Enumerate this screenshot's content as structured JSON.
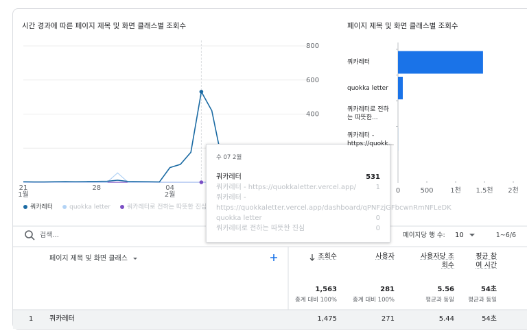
{
  "left_chart": {
    "type": "line",
    "title": "시간 경과에 따른 페이지 제목 및 화면 클래스별 조회수",
    "categories": [
      "21",
      null,
      null,
      null,
      null,
      null,
      null,
      "28",
      null,
      null,
      null,
      null,
      null,
      null,
      "04",
      null,
      null,
      null,
      null,
      null,
      null,
      null,
      null,
      null,
      null,
      null,
      null,
      null
    ],
    "month_labels": [
      "1월",
      null,
      null,
      null,
      null,
      null,
      null,
      null,
      null,
      null,
      null,
      null,
      null,
      null,
      "2월",
      null,
      null,
      null,
      null,
      null,
      null,
      null,
      null,
      null,
      null,
      null,
      null,
      null
    ],
    "ylim": [
      0,
      800
    ],
    "yticks": [
      0,
      200,
      400,
      600,
      800
    ],
    "y_axis_side": "right",
    "grid": true,
    "series": [
      {
        "name": "쿼카레터",
        "color": "#1a6aa3",
        "values": [
          3,
          2,
          2,
          3,
          4,
          3,
          4,
          5,
          6,
          12,
          5,
          4,
          3,
          2,
          86,
          105,
          176,
          531,
          420,
          120,
          40,
          20,
          15,
          12,
          10,
          8,
          6,
          5
        ]
      },
      {
        "name": "quokka letter",
        "color": "#b3d3f5",
        "values": [
          0,
          0,
          0,
          0,
          0,
          0,
          0,
          0,
          0,
          55,
          0,
          0,
          0,
          0,
          0,
          0,
          0,
          0,
          0,
          0,
          0,
          0,
          0,
          0,
          0,
          0,
          0,
          0
        ]
      },
      {
        "name": "쿼카레터로 전하는 따뜻한 진심",
        "color": "#7b4fc4",
        "values": [
          0,
          0,
          0,
          0,
          0,
          0,
          0,
          0,
          0,
          0,
          0,
          0,
          0,
          0,
          0,
          0,
          0,
          0,
          0,
          0,
          0,
          0,
          0,
          0,
          0,
          0,
          0,
          0
        ]
      }
    ]
  },
  "right_chart": {
    "type": "hbar",
    "title": "페이지 제목 및 화면 클래스별 조회수",
    "color": "#1a73e8",
    "categories": [
      "쿼카레터",
      "quokka letter",
      "쿼카레터로 전하는 따뜻한...",
      "쿼카레터 - https://quokk..."
    ],
    "values": [
      1475,
      83,
      0,
      1
    ],
    "xlim": [
      0,
      2000
    ],
    "xticks": [
      0,
      500,
      {
        "value": 1000,
        "label": "1천"
      },
      {
        "value": 1500,
        "label": "1.5천"
      },
      {
        "value": 2000,
        "label": "2천"
      }
    ]
  },
  "tooltip": {
    "title": "수 07 2월",
    "rows": [
      {
        "label": "쿼카레터",
        "value": 531
      },
      {
        "label": "쿼카레터 - https://quokkaletter.vercel.app/",
        "value": 1
      },
      {
        "label": "쿼카레터 - https://quokkaletter.vercel.app/dashboard/qPNFzjGFbcwnRmNFLeDK"
      },
      {
        "label": "quokka letter",
        "value": 0
      },
      {
        "label": "쿼카레터로 전하는 따뜻한 진심",
        "value": 0
      }
    ]
  },
  "controls": {
    "search_placeholder": "검색...",
    "rows_per_page_label": "페이지당 행 수:",
    "rows_per_page": "10",
    "range": "1~6/6"
  },
  "table": {
    "columns": [
      "페이지 제목 및 화면 클래스",
      "조회수",
      "사용자",
      "사용자당 조회수",
      "평균 참여 시간"
    ],
    "totals": [
      {
        "value": "1,563",
        "note": "총계 대비 100%"
      },
      {
        "value": "281",
        "note": "총계 대비 100%"
      },
      {
        "value": "5.56",
        "note": "평균과 동일"
      },
      {
        "value": "54초",
        "note": "평균과 동일"
      }
    ],
    "rows": [
      [
        "1",
        "쿼카레터",
        "1,475",
        "271",
        "5.44",
        "54초"
      ]
    ]
  }
}
